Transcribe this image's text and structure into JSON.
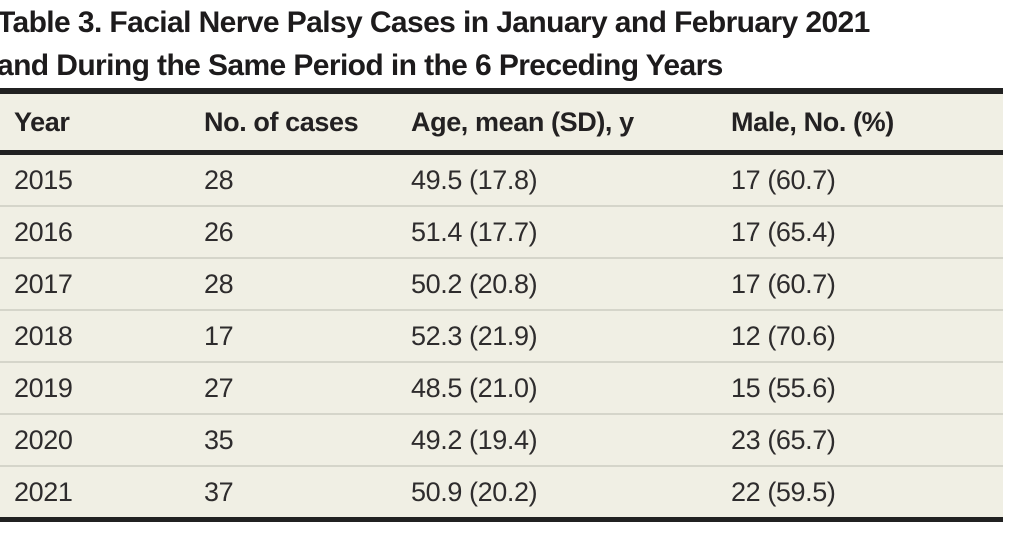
{
  "title": {
    "line1": "Table 3. Facial Nerve Palsy Cases in January and February 2021",
    "line2": "and During the Same Period in the 6 Preceding Years"
  },
  "table": {
    "columns": [
      "Year",
      "No. of cases",
      "Age, mean (SD), y",
      "Male, No. (%)"
    ],
    "rows": [
      {
        "year": "2015",
        "cases": "28",
        "age": "49.5 (17.8)",
        "male": "17 (60.7)"
      },
      {
        "year": "2016",
        "cases": "26",
        "age": "51.4 (17.7)",
        "male": "17 (65.4)"
      },
      {
        "year": "2017",
        "cases": "28",
        "age": "50.2 (20.8)",
        "male": "17 (60.7)"
      },
      {
        "year": "2018",
        "cases": "17",
        "age": "52.3 (21.9)",
        "male": "12 (70.6)"
      },
      {
        "year": "2019",
        "cases": "27",
        "age": "48.5 (21.0)",
        "male": "15 (55.6)"
      },
      {
        "year": "2020",
        "cases": "35",
        "age": "49.2 (19.4)",
        "male": "23 (65.7)"
      },
      {
        "year": "2021",
        "cases": "37",
        "age": "50.9 (20.2)",
        "male": "22 (59.5)"
      }
    ]
  },
  "chart_data": {
    "type": "table",
    "title": "Table 3. Facial Nerve Palsy Cases in January and February 2021 and During the Same Period in the 6 Preceding Years",
    "columns": [
      "Year",
      "No. of cases",
      "Age, mean (SD), y",
      "Male, No. (%)"
    ],
    "rows": [
      [
        "2015",
        "28",
        "49.5 (17.8)",
        "17 (60.7)"
      ],
      [
        "2016",
        "26",
        "51.4 (17.7)",
        "17 (65.4)"
      ],
      [
        "2017",
        "28",
        "50.2 (20.8)",
        "17 (60.7)"
      ],
      [
        "2018",
        "17",
        "52.3 (21.9)",
        "12 (70.6)"
      ],
      [
        "2019",
        "27",
        "48.5 (21.0)",
        "15 (55.6)"
      ],
      [
        "2020",
        "35",
        "49.2 (19.4)",
        "23 (65.7)"
      ],
      [
        "2021",
        "37",
        "50.9 (20.2)",
        "22 (59.5)"
      ]
    ]
  },
  "colors": {
    "row_background": "#f0efe4",
    "rule_dark": "#212121",
    "rule_light": "#d5d5ca",
    "title_text": "#1d1b1c",
    "body_text": "#2e2c2d",
    "page_background": "#ffffff"
  }
}
